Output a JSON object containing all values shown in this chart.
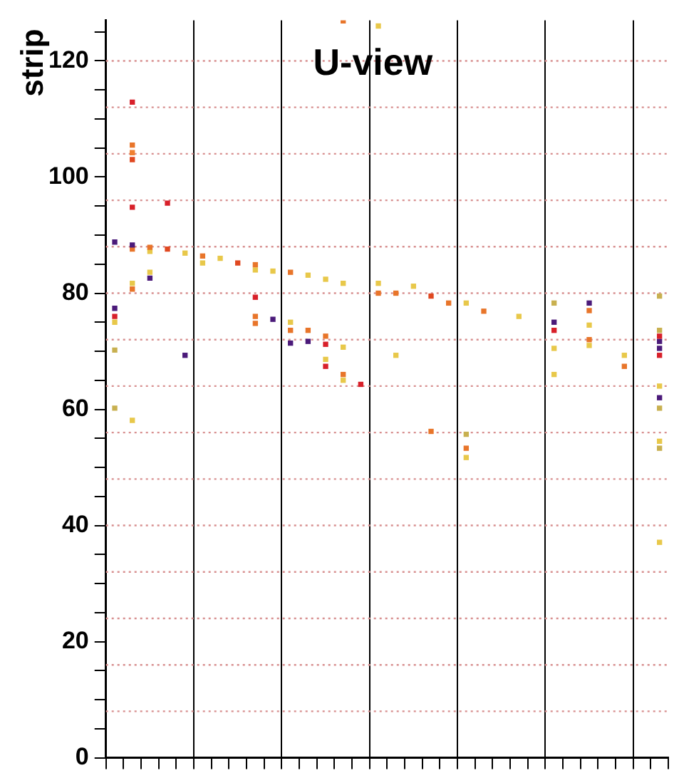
{
  "chart_data": {
    "type": "scatter",
    "title": "U-view",
    "ylabel": "strip",
    "marker": "square",
    "grid": "x",
    "tick_labels": "y",
    "categories": [
      null,
      null,
      null,
      null,
      null,
      null,
      null,
      null,
      null,
      null,
      null,
      null,
      null,
      null,
      null,
      null,
      null,
      null,
      null,
      null,
      null,
      null,
      null,
      null,
      null,
      null,
      null,
      null,
      null,
      null,
      null,
      null
    ],
    "ylim": [
      0,
      127
    ],
    "yticks": [
      0,
      {
        "value": 5,
        "label": null
      },
      {
        "value": 10,
        "label": null
      },
      {
        "value": 15,
        "label": null
      },
      20,
      {
        "value": 25,
        "label": null
      },
      {
        "value": 30,
        "label": null
      },
      {
        "value": 35,
        "label": null
      },
      40,
      {
        "value": 45,
        "label": null
      },
      {
        "value": 50,
        "label": null
      },
      {
        "value": 55,
        "label": null
      },
      60,
      {
        "value": 65,
        "label": null
      },
      {
        "value": 70,
        "label": null
      },
      {
        "value": 75,
        "label": null
      },
      80,
      {
        "value": 85,
        "label": null
      },
      {
        "value": 90,
        "label": null
      },
      {
        "value": 95,
        "label": null
      },
      100,
      {
        "value": 105,
        "label": null
      },
      {
        "value": 110,
        "label": null
      },
      {
        "value": 115,
        "label": null
      },
      120,
      {
        "value": 125,
        "label": null
      }
    ],
    "ref_lines": [
      {
        "axis": "y",
        "value": 8,
        "color": "#d89090",
        "line_style": "dotted"
      },
      {
        "axis": "y",
        "value": 16,
        "color": "#d89090",
        "line_style": "dotted"
      },
      {
        "axis": "y",
        "value": 24,
        "color": "#d89090",
        "line_style": "dotted"
      },
      {
        "axis": "y",
        "value": 32,
        "color": "#d89090",
        "line_style": "dotted"
      },
      {
        "axis": "y",
        "value": 40,
        "color": "#d89090",
        "line_style": "dotted"
      },
      {
        "axis": "y",
        "value": 48,
        "color": "#d89090",
        "line_style": "dotted"
      },
      {
        "axis": "y",
        "value": 56,
        "color": "#d89090",
        "line_style": "dotted"
      },
      {
        "axis": "y",
        "value": 64,
        "color": "#d89090",
        "line_style": "dotted"
      },
      {
        "axis": "y",
        "value": 72,
        "color": "#d89090",
        "line_style": "dotted"
      },
      {
        "axis": "y",
        "value": 80,
        "color": "#d89090",
        "line_style": "dotted"
      },
      {
        "axis": "y",
        "value": 88,
        "color": "#d89090",
        "line_style": "dotted"
      },
      {
        "axis": "y",
        "value": 96,
        "color": "#d89090",
        "line_style": "dotted"
      },
      {
        "axis": "y",
        "value": 104,
        "color": "#d89090",
        "line_style": "dotted"
      },
      {
        "axis": "y",
        "value": 112,
        "color": "#d89090",
        "line_style": "dotted"
      },
      {
        "axis": "y",
        "value": 120,
        "color": "#d89090",
        "line_style": "dotted"
      }
    ],
    "series": [
      {
        "values": [
          88.8,
          112.9,
          87.9,
          95.5,
          86.9,
          86.4,
          86,
          85.2,
          84.9,
          83.8,
          83.6,
          83.1,
          82.4,
          81.7,
          64.3,
          81.7,
          80,
          81.2,
          79.5,
          78.3,
          78.3,
          76.9,
          null,
          76,
          null,
          78.3,
          null,
          78.3,
          null,
          69.3,
          null,
          79.5
        ],
        "colors": [
          "#4b1a7a",
          "#d8202a",
          "#e8752a",
          "#d8202a",
          "#e8c84a",
          "#e8752a",
          "#e8c84a",
          "#e04820",
          "#e8752a",
          "#e8c84a",
          "#e8752a",
          "#e8c84a",
          "#e8c84a",
          "#e8c84a",
          "#d8202a",
          "#e8c84a",
          "#e8752a",
          "#e8c84a",
          "#e04820",
          "#e8752a",
          "#e8c84a",
          "#e8752a",
          null,
          "#e8c84a",
          null,
          "#c8b050",
          null,
          "#4b1a7a",
          null,
          "#e8c84a",
          null,
          "#c8b050"
        ]
      },
      {
        "values": [
          77.4,
          105.5,
          87.2,
          87.6,
          69.3,
          85.2,
          null,
          null,
          84,
          75.5,
          75,
          73.6,
          72.6,
          126.9,
          null,
          80,
          69.3,
          null,
          56.2,
          null,
          55.7,
          null,
          null,
          null,
          null,
          75,
          null,
          77,
          null,
          67.4,
          null,
          73.6
        ],
        "colors": [
          "#4b1a7a",
          "#e8752a",
          "#e8c84a",
          "#e04820",
          "#4b1a7a",
          "#e8c84a",
          null,
          null,
          "#e8c84a",
          "#4b1a7a",
          "#e8c84a",
          "#e8752a",
          "#e8752a",
          "#e8752a",
          null,
          "#e8752a",
          "#e8c84a",
          null,
          "#e8752a",
          null,
          "#c8b050",
          null,
          null,
          null,
          null,
          "#4b1a7a",
          null,
          "#e8752a",
          null,
          "#e8752a",
          null,
          "#c8b050"
        ]
      },
      {
        "values": [
          76,
          104.2,
          82.6,
          null,
          null,
          null,
          null,
          null,
          79.3,
          null,
          73.6,
          71.7,
          71.2,
          70.7,
          null,
          126,
          null,
          null,
          null,
          null,
          53.3,
          null,
          null,
          null,
          null,
          73.6,
          null,
          74.5,
          null,
          null,
          null,
          72.6
        ],
        "colors": [
          "#d8202a",
          "#f08030",
          "#4b1a7a",
          null,
          null,
          null,
          null,
          null,
          "#d8202a",
          null,
          "#e8752a",
          "#4b1a7a",
          "#d8202a",
          "#e8c84a",
          null,
          "#e8c84a",
          null,
          null,
          null,
          null,
          "#e8752a",
          null,
          null,
          null,
          null,
          "#d8202a",
          null,
          "#e8c84a",
          null,
          null,
          null,
          "#d8202a"
        ]
      },
      {
        "values": [
          75,
          103,
          83.6,
          null,
          null,
          null,
          null,
          null,
          76,
          null,
          71.4,
          null,
          68.6,
          66,
          null,
          null,
          null,
          null,
          null,
          null,
          51.7,
          null,
          null,
          null,
          null,
          70.5,
          null,
          72,
          null,
          null,
          null,
          71.7
        ],
        "colors": [
          "#e8c84a",
          "#e04820",
          "#e8c84a",
          null,
          null,
          null,
          null,
          null,
          "#e8752a",
          null,
          "#4b1a7a",
          null,
          "#e8c84a",
          "#e8752a",
          null,
          null,
          null,
          null,
          null,
          null,
          "#e8c84a",
          null,
          null,
          null,
          null,
          "#e8c84a",
          null,
          "#e8752a",
          null,
          null,
          null,
          "#4b1a7a"
        ]
      },
      {
        "values": [
          70.2,
          94.8,
          null,
          null,
          null,
          null,
          null,
          null,
          74.8,
          null,
          null,
          null,
          67.4,
          65,
          null,
          null,
          null,
          null,
          null,
          null,
          null,
          null,
          null,
          null,
          null,
          66,
          null,
          71,
          null,
          null,
          null,
          70.5
        ],
        "colors": [
          "#c8b050",
          "#d8202a",
          null,
          null,
          null,
          null,
          null,
          null,
          "#e8752a",
          null,
          null,
          null,
          "#d8202a",
          "#e8c84a",
          null,
          null,
          null,
          null,
          null,
          null,
          null,
          null,
          null,
          null,
          null,
          "#e8c84a",
          null,
          "#e8c84a",
          null,
          null,
          null,
          "#4b1a7a"
        ]
      },
      {
        "values": [
          60.2,
          88.3,
          null,
          null,
          null,
          null,
          null,
          null,
          null,
          null,
          null,
          null,
          null,
          null,
          null,
          null,
          null,
          null,
          null,
          null,
          null,
          null,
          null,
          null,
          null,
          null,
          null,
          null,
          null,
          null,
          null,
          69.3
        ],
        "colors": [
          "#c8b050",
          "#4b1a7a",
          null,
          null,
          null,
          null,
          null,
          null,
          null,
          null,
          null,
          null,
          null,
          null,
          null,
          null,
          null,
          null,
          null,
          null,
          null,
          null,
          null,
          null,
          null,
          null,
          null,
          null,
          null,
          null,
          null,
          "#d8202a"
        ]
      },
      {
        "values": [
          null,
          87.6,
          null,
          null,
          null,
          null,
          null,
          null,
          null,
          null,
          null,
          null,
          null,
          null,
          null,
          null,
          null,
          null,
          null,
          null,
          null,
          null,
          null,
          null,
          null,
          null,
          null,
          null,
          null,
          null,
          null,
          64
        ],
        "colors": [
          null,
          "#e8752a",
          null,
          null,
          null,
          null,
          null,
          null,
          null,
          null,
          null,
          null,
          null,
          null,
          null,
          null,
          null,
          null,
          null,
          null,
          null,
          null,
          null,
          null,
          null,
          null,
          null,
          null,
          null,
          null,
          null,
          "#e8c84a"
        ]
      },
      {
        "values": [
          null,
          81.7,
          null,
          null,
          null,
          null,
          null,
          null,
          null,
          null,
          null,
          null,
          null,
          null,
          null,
          null,
          null,
          null,
          null,
          null,
          null,
          null,
          null,
          null,
          null,
          null,
          null,
          null,
          null,
          null,
          null,
          62
        ],
        "colors": [
          null,
          "#e8c84a",
          null,
          null,
          null,
          null,
          null,
          null,
          null,
          null,
          null,
          null,
          null,
          null,
          null,
          null,
          null,
          null,
          null,
          null,
          null,
          null,
          null,
          null,
          null,
          null,
          null,
          null,
          null,
          null,
          null,
          "#4b1a7a"
        ]
      },
      {
        "values": [
          null,
          80.7,
          null,
          null,
          null,
          null,
          null,
          null,
          null,
          null,
          null,
          null,
          null,
          null,
          null,
          null,
          null,
          null,
          null,
          null,
          null,
          null,
          null,
          null,
          null,
          null,
          null,
          null,
          null,
          null,
          null,
          60.2
        ],
        "colors": [
          null,
          "#e8752a",
          null,
          null,
          null,
          null,
          null,
          null,
          null,
          null,
          null,
          null,
          null,
          null,
          null,
          null,
          null,
          null,
          null,
          null,
          null,
          null,
          null,
          null,
          null,
          null,
          null,
          null,
          null,
          null,
          null,
          "#c8b050"
        ]
      },
      {
        "values": [
          null,
          58.1,
          null,
          null,
          null,
          null,
          null,
          null,
          null,
          null,
          null,
          null,
          null,
          null,
          null,
          null,
          null,
          null,
          null,
          null,
          null,
          null,
          null,
          null,
          null,
          null,
          null,
          null,
          null,
          null,
          null,
          54.5
        ],
        "colors": [
          null,
          "#e8c84a",
          null,
          null,
          null,
          null,
          null,
          null,
          null,
          null,
          null,
          null,
          null,
          null,
          null,
          null,
          null,
          null,
          null,
          null,
          null,
          null,
          null,
          null,
          null,
          null,
          null,
          null,
          null,
          null,
          null,
          "#e8c84a"
        ]
      },
      {
        "values": [
          null,
          null,
          null,
          null,
          null,
          null,
          null,
          null,
          null,
          null,
          null,
          null,
          null,
          null,
          null,
          null,
          null,
          null,
          null,
          null,
          null,
          null,
          null,
          null,
          null,
          null,
          null,
          null,
          null,
          null,
          null,
          53.3
        ],
        "colors": [
          null,
          null,
          null,
          null,
          null,
          null,
          null,
          null,
          null,
          null,
          null,
          null,
          null,
          null,
          null,
          null,
          null,
          null,
          null,
          null,
          null,
          null,
          null,
          null,
          null,
          null,
          null,
          null,
          null,
          null,
          null,
          "#c8b050"
        ]
      },
      {
        "values": [
          null,
          null,
          null,
          null,
          null,
          null,
          null,
          null,
          null,
          null,
          null,
          null,
          null,
          null,
          null,
          null,
          null,
          null,
          null,
          null,
          null,
          null,
          null,
          null,
          null,
          null,
          null,
          null,
          null,
          null,
          null,
          37.1
        ],
        "colors": [
          null,
          null,
          null,
          null,
          null,
          null,
          null,
          null,
          null,
          null,
          null,
          null,
          null,
          null,
          null,
          null,
          null,
          null,
          null,
          null,
          null,
          null,
          null,
          null,
          null,
          null,
          null,
          null,
          null,
          null,
          null,
          "#e8c84a"
        ]
      }
    ]
  }
}
